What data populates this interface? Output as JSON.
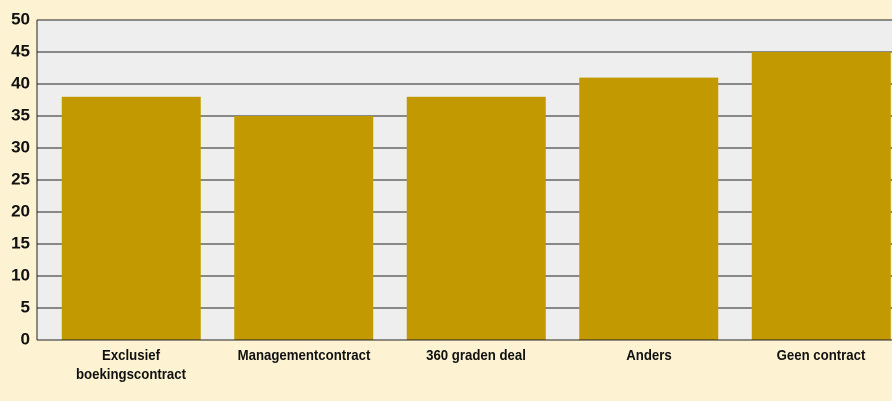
{
  "chart_data": {
    "type": "bar",
    "categories": [
      "Exclusief boekingscontract",
      "Managementcontract",
      "360 graden deal",
      "Anders",
      "Geen contract"
    ],
    "values": [
      38,
      35,
      38,
      41,
      45
    ],
    "color": "#c29a00",
    "ylim": [
      0,
      50
    ],
    "yticks": [
      0,
      5,
      10,
      15,
      20,
      25,
      30,
      35,
      40,
      45,
      50
    ],
    "grid": true
  }
}
